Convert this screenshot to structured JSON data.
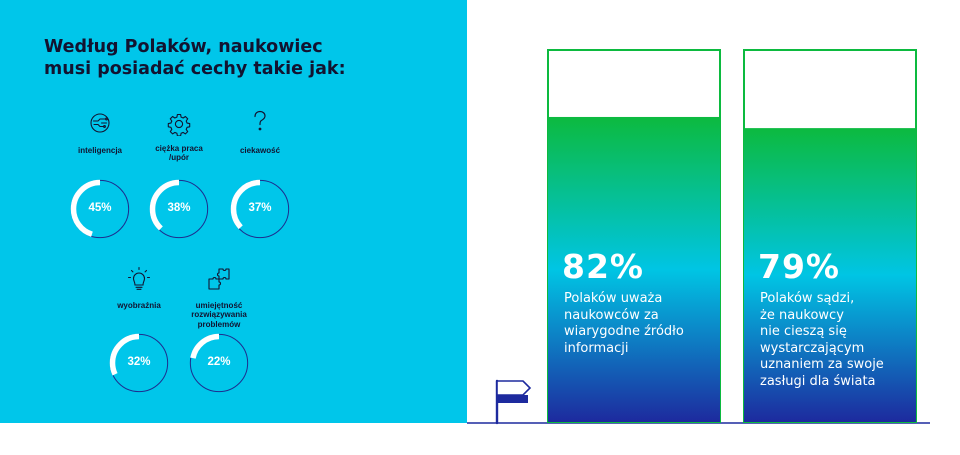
{
  "colors": {
    "panel": "#00c6ea",
    "ink": "#121330",
    "ring_fill": "#ffffff",
    "ring_track": "#1d2d8f",
    "bar_top": "#0cba3f",
    "bar_mid": "#00c5e4",
    "bar_bottom": "#1d2a9e",
    "bar_outline": "#0cba3f",
    "baseline": "#1d2a9e",
    "flag": "#1d2a9e"
  },
  "title": "Według Polaków, naukowiec\nmusi posiadać cechy takie jak:",
  "traits": [
    {
      "label": "inteligencja",
      "value_label": "45%",
      "value": 45,
      "icon": "brain-icon"
    },
    {
      "label": "ciężka praca\n/upór",
      "value_label": "38%",
      "value": 38,
      "icon": "gear-icon"
    },
    {
      "label": "ciekawość",
      "value_label": "37%",
      "value": 37,
      "icon": "question-mark-icon"
    },
    {
      "label": "wyobraźnia",
      "value_label": "32%",
      "value": 32,
      "icon": "lightbulb-icon"
    },
    {
      "label": "umiejętność\nrozwiązywania\nproblemów",
      "value_label": "22%",
      "value": 22,
      "icon": "puzzle-icon"
    }
  ],
  "flag_icon": "flag-icon",
  "chart_data": {
    "type": "bar",
    "ylim": [
      0,
      100
    ],
    "categories": [
      "Polaków uważa\nnaukowców za\nwiarygodne źródło\ninformacji",
      "Polaków sądzi,\nże naukowcy\nnie cieszą się\nwystarczającym\nuznaniem za swoje\nzasługi dla świata"
    ],
    "values": [
      82,
      79
    ],
    "value_labels": [
      "82%",
      "79%"
    ]
  }
}
